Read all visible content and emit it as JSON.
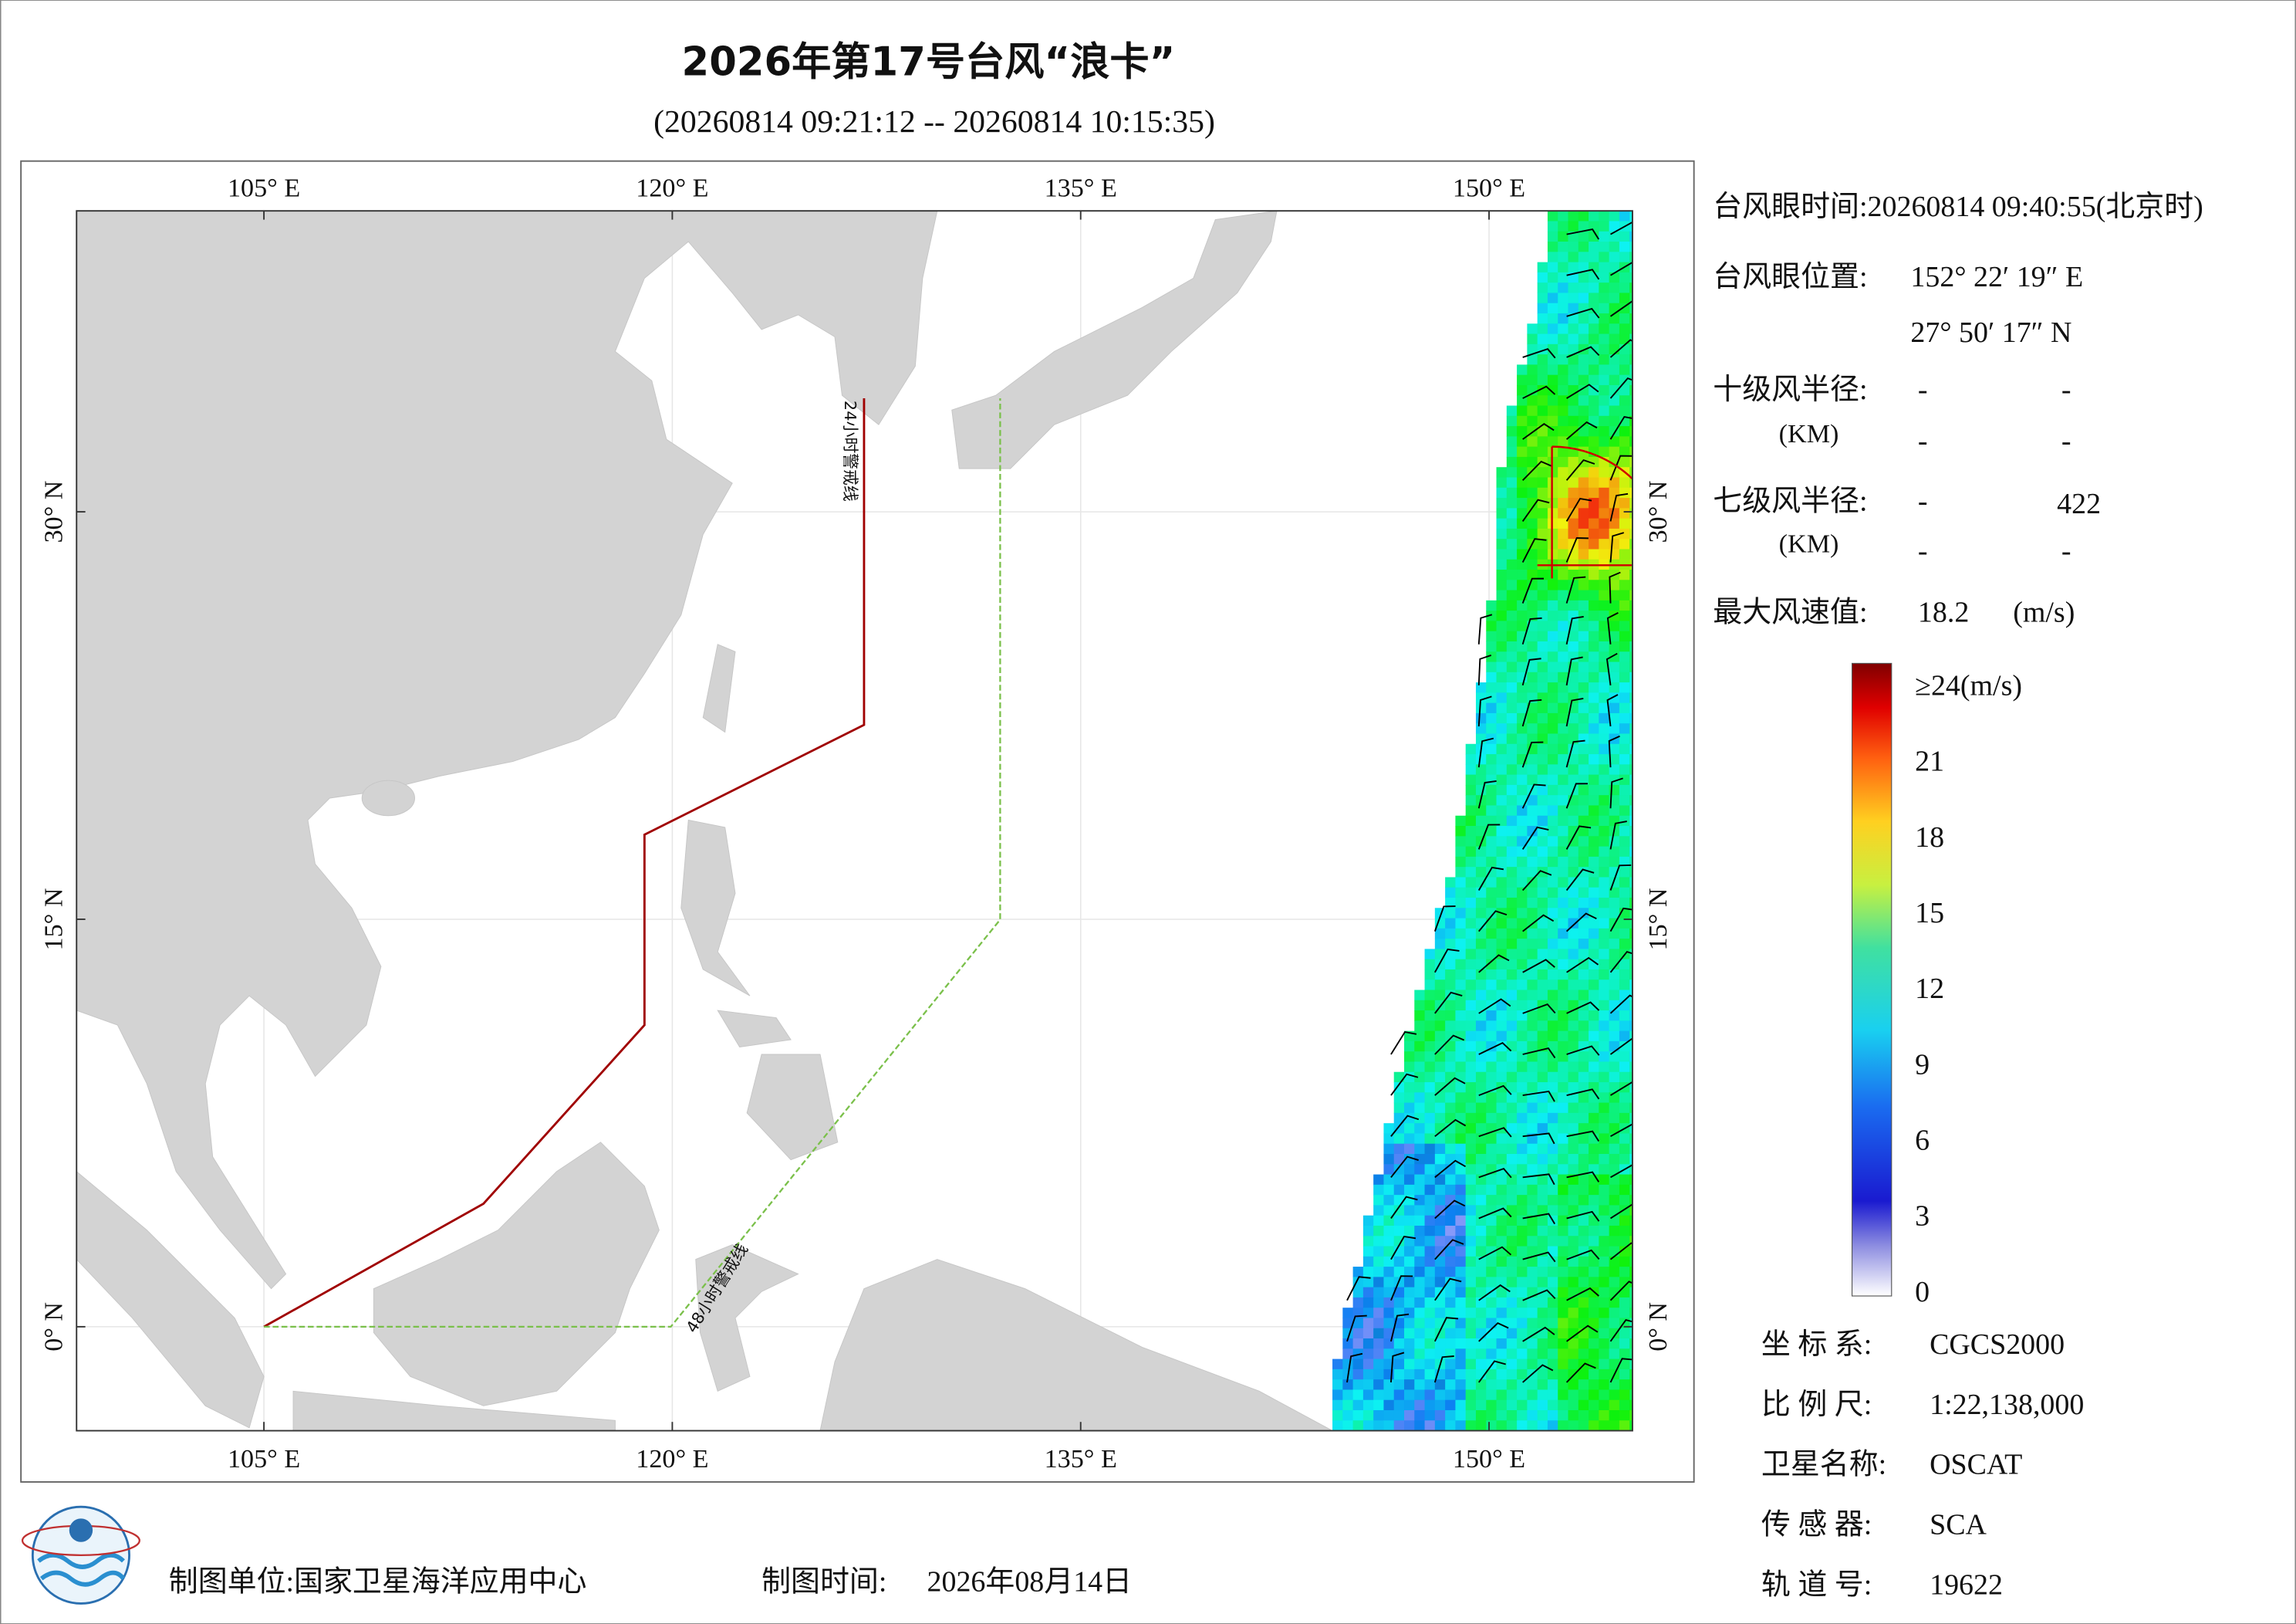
{
  "title": "2026年第17号台风“浪卡”",
  "time_range": "(20260814 09:21:12 -- 20260814 10:15:35)",
  "map": {
    "lon_ticks": [
      {
        "value": 105,
        "label": "105° E"
      },
      {
        "value": 120,
        "label": "120° E"
      },
      {
        "value": 135,
        "label": "135° E"
      },
      {
        "value": 150,
        "label": "150° E"
      }
    ],
    "lat_ticks": [
      {
        "value": 30,
        "label": "30° N"
      },
      {
        "value": 15,
        "label": "15° N"
      },
      {
        "value": 0,
        "label": "0° N"
      }
    ],
    "warning_24h": "24小时警戒线",
    "warning_48h": "48小时警戒线"
  },
  "info": {
    "eye_time": "台风眼时间:20260814 09:40:55(北京时)",
    "eye_position_label": "台风眼位置:",
    "eye_lon": "152° 22′ 19″ E",
    "eye_lat": "27° 50′ 17″ N",
    "r10_label": "十级风半径:",
    "r10_unit": "(KM)",
    "r10_values": [
      [
        "-",
        "-"
      ],
      [
        "-",
        "-"
      ]
    ],
    "r7_label": "七级风半径:",
    "r7_unit": "(KM)",
    "r7_values": [
      [
        "-",
        422
      ],
      [
        "-",
        "-"
      ]
    ],
    "max_wind_label": "最大风速值:",
    "max_wind": 18.2,
    "max_wind_unit": "(m/s)"
  },
  "colorbar": {
    "range": [
      0,
      24
    ],
    "ticks": [
      {
        "value": 24,
        "label": "≥24(m/s)"
      },
      21,
      18,
      15,
      12,
      9,
      6,
      3,
      0
    ]
  },
  "meta": [
    {
      "label": "坐 标 系:",
      "value": "CGCS2000"
    },
    {
      "label": "比 例 尺:",
      "value": "1:22,138,000"
    },
    {
      "label": "卫星名称:",
      "value": "OSCAT"
    },
    {
      "label": "传 感 器:",
      "value": "SCA"
    },
    {
      "label": "轨 道 号:",
      "value": "19622"
    }
  ],
  "footer": {
    "producer": "制图单位:国家卫星海洋应用中心",
    "date_label": "制图时间:",
    "date": "2026年08月14日"
  }
}
